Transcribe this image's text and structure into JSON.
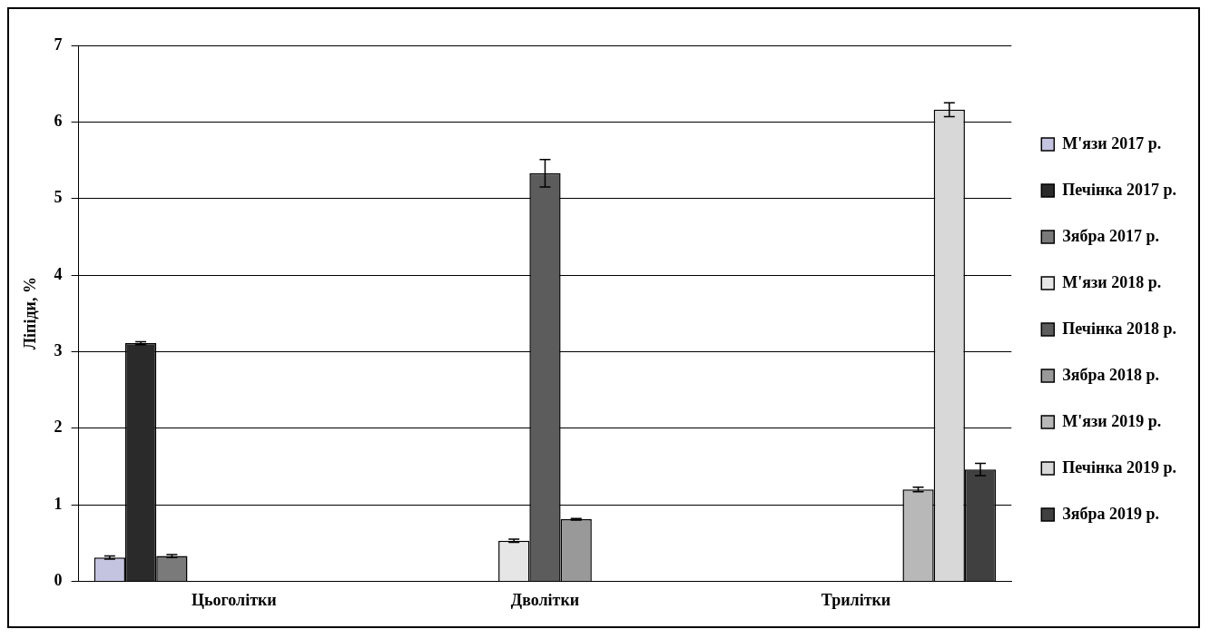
{
  "chart_data": {
    "type": "bar",
    "ylabel": "Ліпіди, %",
    "categories": [
      "Цьоголітки",
      "Дволітки",
      "Трилітки"
    ],
    "ylim": [
      0,
      7
    ],
    "yticks": [
      0,
      1,
      2,
      3,
      4,
      5,
      6,
      7
    ],
    "grid": "y",
    "legend": "right",
    "series": [
      {
        "name": "М'язи 2017 р.",
        "color": "#c4c4e0",
        "values": [
          0.31,
          null,
          null
        ],
        "errors": [
          0.02,
          null,
          null
        ]
      },
      {
        "name": "Печінка 2017 р.",
        "color": "#2a2a2a",
        "values": [
          3.11,
          null,
          null
        ],
        "errors": [
          0.02,
          null,
          null
        ]
      },
      {
        "name": "Зябра 2017 р.",
        "color": "#7a7a7a",
        "values": [
          0.33,
          null,
          null
        ],
        "errors": [
          0.02,
          null,
          null
        ]
      },
      {
        "name": "М'язи 2018 р.",
        "color": "#e6e6e6",
        "values": [
          null,
          0.53,
          null
        ],
        "errors": [
          null,
          0.02,
          null
        ]
      },
      {
        "name": "Печінка 2018 р.",
        "color": "#5c5c5c",
        "values": [
          null,
          5.33,
          null
        ],
        "errors": [
          null,
          0.18,
          null
        ]
      },
      {
        "name": "Зябра 2018 р.",
        "color": "#999999",
        "values": [
          null,
          0.81,
          null
        ],
        "errors": [
          null,
          0.01,
          null
        ]
      },
      {
        "name": "М'язи 2019 р.",
        "color": "#b8b8b8",
        "values": [
          null,
          null,
          1.2
        ],
        "errors": [
          null,
          null,
          0.03
        ]
      },
      {
        "name": "Печінка 2019 р.",
        "color": "#d8d8d8",
        "values": [
          null,
          null,
          6.16
        ],
        "errors": [
          null,
          null,
          0.09
        ]
      },
      {
        "name": "Зябра 2019 р.",
        "color": "#404040",
        "values": [
          null,
          null,
          1.46
        ],
        "errors": [
          null,
          null,
          0.08
        ]
      }
    ]
  }
}
